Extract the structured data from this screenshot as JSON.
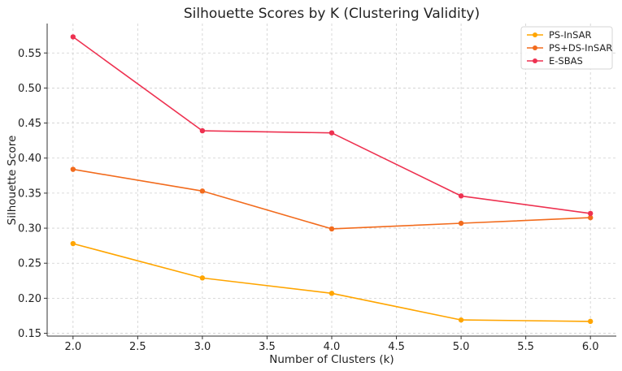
{
  "chart_data": {
    "type": "line",
    "title": "Silhouette Scores by K (Clustering Validity)",
    "xlabel": "Number of Clusters (k)",
    "ylabel": "Silhouette Score",
    "x": [
      2,
      3,
      4,
      5,
      6
    ],
    "xlim": [
      1.8,
      6.2
    ],
    "ylim": [
      0.146,
      0.592
    ],
    "xticks": [
      2.0,
      2.5,
      3.0,
      3.5,
      4.0,
      4.5,
      5.0,
      5.5,
      6.0
    ],
    "xtick_labels": [
      "2.0",
      "2.5",
      "3.0",
      "3.5",
      "4.0",
      "4.5",
      "5.0",
      "5.5",
      "6.0"
    ],
    "yticks": [
      0.15,
      0.2,
      0.25,
      0.3,
      0.35,
      0.4,
      0.45,
      0.5,
      0.55
    ],
    "ytick_labels": [
      "0.15",
      "0.20",
      "0.25",
      "0.30",
      "0.35",
      "0.40",
      "0.45",
      "0.50",
      "0.55"
    ],
    "grid": true,
    "legend_position": "top-right",
    "series": [
      {
        "name": "PS-InSAR",
        "color": "#FFA500",
        "values": [
          0.278,
          0.229,
          0.207,
          0.169,
          0.167
        ]
      },
      {
        "name": "PS+DS-InSAR",
        "color": "#F26B1D",
        "values": [
          0.384,
          0.353,
          0.299,
          0.307,
          0.315
        ]
      },
      {
        "name": "E-SBAS",
        "color": "#EE3150",
        "values": [
          0.573,
          0.439,
          0.436,
          0.346,
          0.321
        ]
      }
    ]
  }
}
